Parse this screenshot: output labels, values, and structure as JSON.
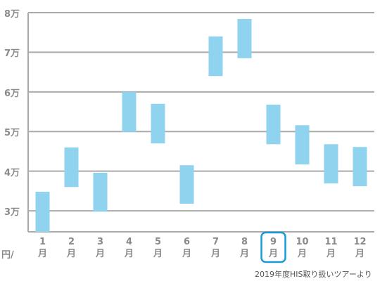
{
  "chart_data": {
    "type": "floating_bar",
    "categories": [
      "1\n月",
      "2\n月",
      "3\n月",
      "4\n月",
      "5\n月",
      "6\n月",
      "7\n月",
      "8\n月",
      "9\n月",
      "10\n月",
      "11\n月",
      "12\n月"
    ],
    "series": [
      {
        "color": "#8fd3ef",
        "low": [
          2.47,
          3.6,
          2.98,
          4.99,
          4.7,
          3.18,
          6.4,
          6.85,
          4.68,
          4.17,
          3.69,
          3.62
        ],
        "high": [
          3.48,
          4.6,
          3.96,
          6.0,
          5.7,
          4.15,
          7.4,
          7.84,
          5.68,
          5.16,
          4.68,
          4.61
        ]
      }
    ],
    "ylim": [
      2.47,
      8
    ],
    "yticks": [
      {
        "value": 3,
        "label": "3万"
      },
      {
        "value": 4,
        "label": "4万"
      },
      {
        "value": 5,
        "label": "5万"
      },
      {
        "value": 6,
        "label": "6万"
      },
      {
        "value": 7,
        "label": "7万"
      },
      {
        "value": 8,
        "label": "8万"
      }
    ],
    "grid": true,
    "y_unit_label": "円/",
    "highlighted_category_index": 8,
    "highlight_color": "#1a9bd7",
    "source_note": "2019年度HIS取り扱いツアーより"
  }
}
